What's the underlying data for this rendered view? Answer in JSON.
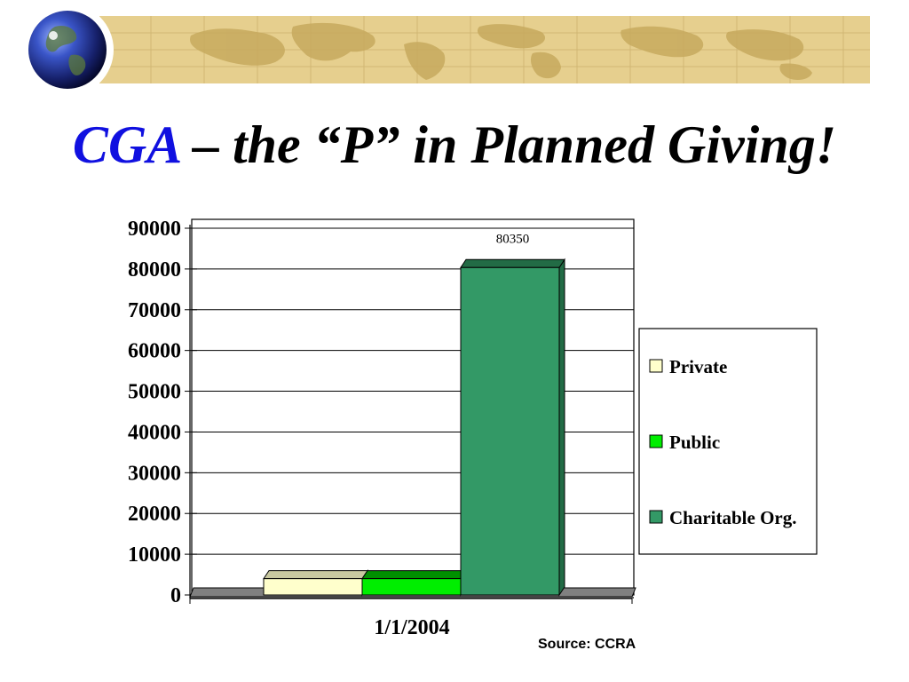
{
  "slide": {
    "title_acronym": "CGA",
    "title_rest": " – the “P” in Planned Giving!",
    "source": "Source: CCRA",
    "decor": [
      "globe-icon",
      "world-map-banner"
    ]
  },
  "colors": {
    "banner": "#e6cf8e",
    "banner_map": "#c7aa5e",
    "title_acronym": "#1010e0",
    "floor": "#808080"
  },
  "chart_data": {
    "type": "bar",
    "style": "3d-column",
    "categories": [
      "1/1/2004"
    ],
    "series": [
      {
        "name": "Private",
        "values": [
          4000
        ],
        "color": "#ffffcc",
        "top_color": "#c8c8a0"
      },
      {
        "name": "Public",
        "values": [
          4000
        ],
        "color": "#00ee00",
        "top_color": "#009000"
      },
      {
        "name": "Charitable Org.",
        "values": [
          80350
        ],
        "color": "#339966",
        "top_color": "#226b45"
      }
    ],
    "data_labels": [
      "",
      "",
      "80350"
    ],
    "title": "",
    "xlabel": "",
    "ylabel": "",
    "ylim": [
      0,
      90000
    ],
    "yticks": [
      0,
      10000,
      20000,
      30000,
      40000,
      50000,
      60000,
      70000,
      80000,
      90000
    ],
    "grid": true,
    "legend_position": "right"
  }
}
